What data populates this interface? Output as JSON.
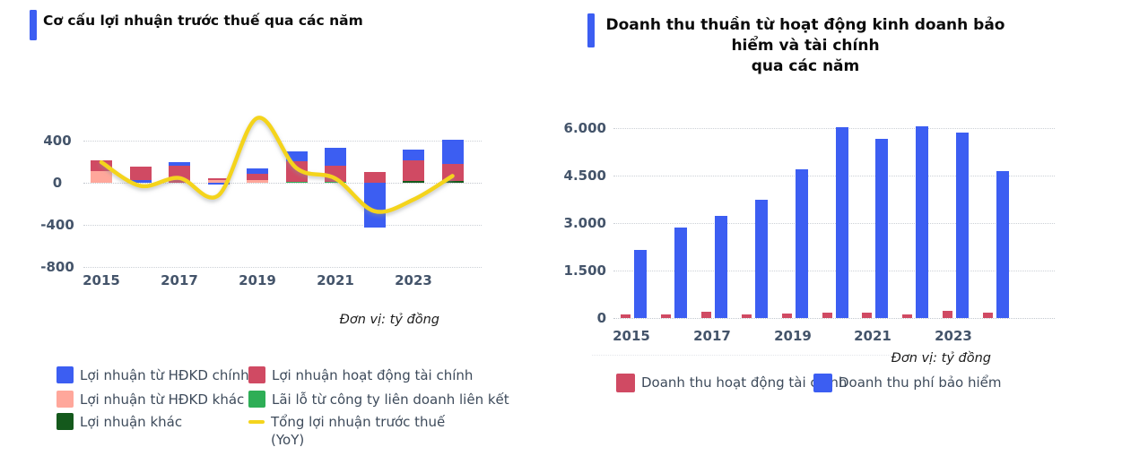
{
  "page": {
    "background": "#ffffff"
  },
  "colors": {
    "accent_blue": "#3c5ef2",
    "bar_blue": "#3c5ef2",
    "bar_red": "#d04a63",
    "bar_salmon": "#ffa79b",
    "bar_green": "#2eae56",
    "bar_dark_green": "#14591c",
    "line_yellow": "#f4d41d",
    "axis_text": "#44546a",
    "legend_text": "#3e4b5b"
  },
  "chart_data": [
    {
      "type": "bar",
      "subtype": "stacked-bar-with-smooth-line",
      "title": "Cơ cấu lợi nhuận trước thuế qua các năm",
      "unit_label": "Đơn vị: tỷ đồng",
      "categories": [
        "2015",
        "2016",
        "2017",
        "2018",
        "2019",
        "2020",
        "2021",
        "2022",
        "2023",
        "2024"
      ],
      "x_tick_labels": [
        "2015",
        "2017",
        "2019",
        "2021",
        "2023"
      ],
      "y_tick_labels": [
        "400",
        "0",
        "-400",
        "-800"
      ],
      "y_tick_values": [
        400,
        0,
        -400,
        -800
      ],
      "ylim": [
        -880,
        660
      ],
      "grid": "dotted-horizontal",
      "legend_position": "bottom",
      "series": [
        {
          "name": "Lợi nhuận từ HĐKD chính",
          "color": "#3c5ef2",
          "values": [
            0,
            22,
            35,
            -15,
            55,
            95,
            170,
            -425,
            105,
            235
          ]
        },
        {
          "name": "Lợi nhuận hoạt động tài chính",
          "color": "#d04a63",
          "values": [
            100,
            130,
            160,
            15,
            60,
            195,
            150,
            105,
            195,
            160
          ]
        },
        {
          "name": "Lợi nhuận từ HĐKD khác",
          "color": "#ffa79b",
          "values": [
            110,
            0,
            0,
            25,
            25,
            0,
            0,
            0,
            0,
            0
          ]
        },
        {
          "name": "Lãi lỗ từ công ty liên doanh liên kết",
          "color": "#2eae56",
          "values": [
            0,
            0,
            0,
            0,
            0,
            10,
            10,
            0,
            0,
            0
          ]
        },
        {
          "name": "Lợi nhuận khác",
          "color": "#14591c",
          "values": [
            0,
            0,
            0,
            0,
            0,
            0,
            0,
            0,
            15,
            15
          ]
        }
      ],
      "stack_order": [
        [
          2,
          1
        ],
        [
          0,
          1
        ],
        [
          1,
          0
        ],
        [
          2,
          1,
          0
        ],
        [
          2,
          1,
          0
        ],
        [
          3,
          1,
          0
        ],
        [
          3,
          1,
          0
        ],
        [
          1,
          0
        ],
        [
          4,
          1,
          0
        ],
        [
          4,
          1,
          0
        ]
      ],
      "line_series": {
        "name": "Tổng lợi nhuận trước thuế",
        "name_line2": "(YoY)",
        "color": "#f4d41d",
        "values": [
          195,
          -30,
          45,
          -120,
          615,
          140,
          40,
          -270,
          -160,
          65
        ]
      }
    },
    {
      "type": "bar",
      "subtype": "grouped-bar",
      "title_line1": "Doanh thu thuần từ hoạt động kinh doanh bảo hiểm và tài chính",
      "title_line2": "qua các năm",
      "unit_label": "Đơn vị: tỷ đồng",
      "categories": [
        "2015",
        "2016",
        "2017",
        "2018",
        "2019",
        "2020",
        "2021",
        "2022",
        "2023",
        "2024"
      ],
      "x_tick_labels": [
        "2015",
        "2017",
        "2019",
        "2021",
        "2023"
      ],
      "y_tick_labels": [
        "6.000",
        "4.500",
        "3.000",
        "1.500",
        "0"
      ],
      "y_tick_values": [
        6000,
        4500,
        3000,
        1500,
        0
      ],
      "ylim": [
        0,
        6600
      ],
      "grid": "dotted-horizontal",
      "legend_position": "bottom",
      "series": [
        {
          "name": "Doanh thu hoạt động tài chính",
          "color": "#d04a63",
          "values": [
            120,
            120,
            210,
            120,
            150,
            160,
            160,
            120,
            230,
            180
          ]
        },
        {
          "name": "Doanh thu phí bảo hiểm",
          "color": "#3c5ef2",
          "values": [
            2150,
            2850,
            3230,
            3730,
            4700,
            6020,
            5650,
            6050,
            5850,
            4650
          ]
        }
      ]
    }
  ]
}
